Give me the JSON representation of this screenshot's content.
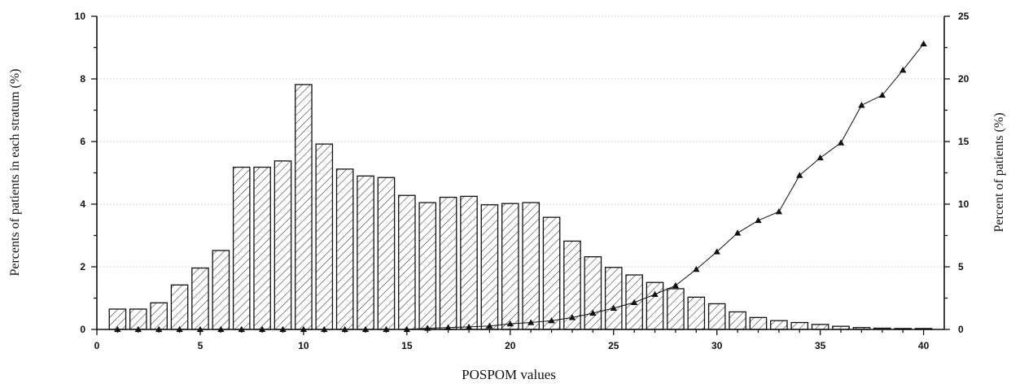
{
  "chart_data": {
    "type": "bar",
    "xlabel": "POSPOM values",
    "ylabel": "Percents of patients in each stratum (%)",
    "y2label": "Percent of patients (%)",
    "xlim": [
      0,
      41
    ],
    "ylim": [
      0,
      10
    ],
    "y2lim": [
      0,
      25
    ],
    "xticks": [
      0,
      5,
      10,
      15,
      20,
      25,
      30,
      35,
      40
    ],
    "yticks": [
      0,
      2,
      4,
      6,
      8,
      10
    ],
    "y2ticks": [
      0,
      5,
      10,
      15,
      20,
      25
    ],
    "grid": true,
    "x": [
      1,
      2,
      3,
      4,
      5,
      6,
      7,
      8,
      9,
      10,
      11,
      12,
      13,
      14,
      15,
      16,
      17,
      18,
      19,
      20,
      21,
      22,
      23,
      24,
      25,
      26,
      27,
      28,
      29,
      30,
      31,
      32,
      33,
      34,
      35,
      36,
      37,
      38,
      39,
      40
    ],
    "series": [
      {
        "chart_type": "bar",
        "axis": "left",
        "fill": "hatched",
        "values": [
          0.65,
          0.65,
          0.85,
          1.42,
          1.96,
          2.52,
          5.18,
          5.18,
          5.38,
          7.82,
          5.92,
          5.12,
          4.9,
          4.85,
          4.28,
          4.05,
          4.22,
          4.25,
          3.98,
          4.02,
          4.05,
          3.58,
          2.82,
          2.32,
          1.98,
          1.74,
          1.5,
          1.3,
          1.03,
          0.82,
          0.56,
          0.38,
          0.28,
          0.22,
          0.16,
          0.1,
          0.06,
          0.04,
          0.03,
          0.03
        ]
      },
      {
        "chart_type": "line",
        "axis": "right",
        "marker": "triangle",
        "values": [
          0,
          0,
          0,
          0,
          0,
          0,
          0,
          0,
          0,
          0,
          0,
          0,
          0,
          0,
          0,
          0.1,
          0.15,
          0.2,
          0.28,
          0.45,
          0.55,
          0.7,
          0.95,
          1.3,
          1.7,
          2.15,
          2.8,
          3.5,
          4.8,
          6.2,
          7.7,
          8.7,
          9.4,
          12.3,
          13.7,
          14.9,
          17.9,
          18.7,
          20.7,
          22.8
        ]
      }
    ]
  }
}
